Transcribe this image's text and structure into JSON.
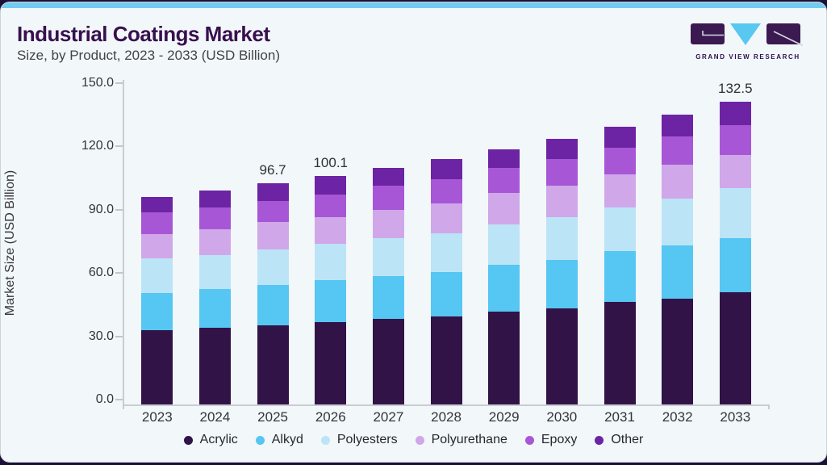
{
  "header": {
    "title": "Industrial Coatings Market",
    "subtitle": "Size, by Product, 2023 - 2033 (USD Billion)",
    "brand": "GRAND VIEW RESEARCH"
  },
  "colors": {
    "topbar_accent": "#72ccf0",
    "card_background": "#f2f7fa",
    "outer_background": "#1b1038",
    "title_purple": "#38104e",
    "logo_purple": "#3b1a52",
    "logo_triangle_blue": "#58c8f1"
  },
  "chart_data": {
    "type": "bar",
    "stacked": true,
    "title": "Industrial Coatings Market Size, by Product, 2023 - 2033 (USD Billion)",
    "xlabel": "",
    "ylabel": "Market Size (USD Billion)",
    "ylim": [
      0,
      150
    ],
    "ytick_labels": [
      "0.0",
      "30.0",
      "60.0",
      "90.0",
      "120.0",
      "150.0"
    ],
    "grid": false,
    "legend_position": "bottom",
    "categories": [
      "2023",
      "2024",
      "2025",
      "2026",
      "2027",
      "2028",
      "2029",
      "2030",
      "2031",
      "2032",
      "2033"
    ],
    "series": [
      {
        "name": "Acrylic",
        "color": "#311347",
        "values": [
          32.4,
          33.4,
          34.6,
          36.2,
          37.6,
          38.5,
          40.8,
          42.2,
          44.8,
          46.3,
          49.0
        ]
      },
      {
        "name": "Alkyd",
        "color": "#56c6f2",
        "values": [
          16.3,
          17.0,
          17.8,
          18.3,
          18.5,
          19.5,
          20.4,
          21.2,
          22.4,
          23.4,
          23.9
        ]
      },
      {
        "name": "Polyesters",
        "color": "#bce4f7",
        "values": [
          15.3,
          14.8,
          15.3,
          15.7,
          16.7,
          17.0,
          17.6,
          18.6,
          19.0,
          20.5,
          21.9
        ]
      },
      {
        "name": "Polyurethane",
        "color": "#d0a7e9",
        "values": [
          10.4,
          11.6,
          12.0,
          11.7,
          12.3,
          12.9,
          13.7,
          13.8,
          14.6,
          14.7,
          14.5
        ]
      },
      {
        "name": "Epoxy",
        "color": "#a757d6",
        "values": [
          9.6,
          9.5,
          9.4,
          10.1,
          10.6,
          10.6,
          10.9,
          11.5,
          11.7,
          12.4,
          12.9
        ]
      },
      {
        "name": "Other",
        "color": "#6c24a4",
        "values": [
          6.7,
          7.3,
          7.6,
          8.1,
          7.9,
          8.9,
          8.2,
          9.0,
          8.9,
          9.4,
          10.3
        ]
      }
    ],
    "totals": [
      90.7,
      93.6,
      96.7,
      100.1,
      103.6,
      107.4,
      111.6,
      116.3,
      121.4,
      126.7,
      132.5
    ],
    "total_labels": {
      "2025": "96.7",
      "2026": "100.1",
      "2033": "132.5"
    }
  }
}
